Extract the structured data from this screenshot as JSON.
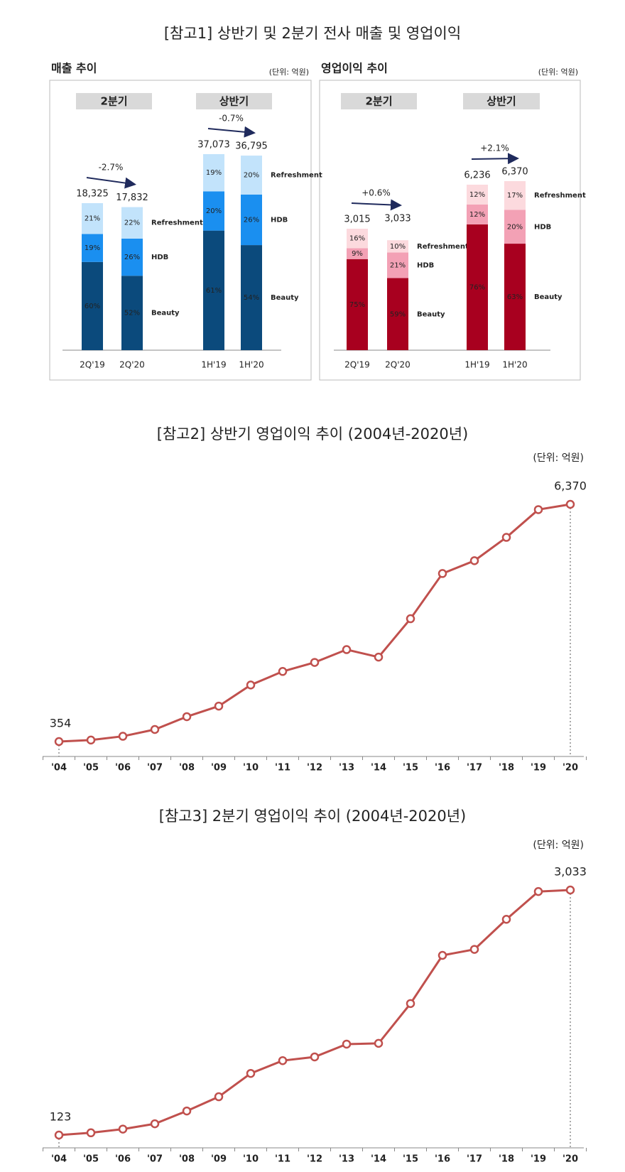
{
  "section_title": "[참고1] 상반기 및 2분기 전사 매출 및 영업이익",
  "chart_data": [
    {
      "type": "bar",
      "title": "매출 추이",
      "unit": "(단위: 억원)",
      "groups": [
        {
          "name": "2분기",
          "change": "-2.7%"
        },
        {
          "name": "상반기",
          "change": "-0.7%"
        }
      ],
      "categories": [
        "2Q'19",
        "2Q'20",
        "1H'19",
        "1H'20"
      ],
      "totals": [
        18325,
        17832,
        37073,
        36795
      ],
      "total_labels": [
        "18,325",
        "17,832",
        "37,073",
        "36,795"
      ],
      "series": [
        {
          "name": "Beauty",
          "color": "#0b4a7c",
          "values": [
            60,
            52,
            61,
            54
          ],
          "value_labels": [
            "60%",
            "52%",
            "61%",
            "54%"
          ]
        },
        {
          "name": "HDB",
          "color": "#1a8ff0",
          "values": [
            19,
            26,
            20,
            26
          ],
          "value_labels": [
            "19%",
            "26%",
            "20%",
            "26%"
          ]
        },
        {
          "name": "Refreshment",
          "color": "#c2e3fb",
          "values": [
            21,
            22,
            19,
            20
          ],
          "value_labels": [
            "21%",
            "22%",
            "19%",
            "20%"
          ]
        }
      ]
    },
    {
      "type": "bar",
      "title": "영업이익 추이",
      "unit": "(단위: 억원)",
      "groups": [
        {
          "name": "2분기",
          "change": "+0.6%"
        },
        {
          "name": "상반기",
          "change": "+2.1%"
        }
      ],
      "categories": [
        "2Q'19",
        "2Q'20",
        "1H'19",
        "1H'20"
      ],
      "totals": [
        3015,
        3033,
        6236,
        6370
      ],
      "total_labels": [
        "3,015",
        "3,033",
        "6,236",
        "6,370"
      ],
      "series": [
        {
          "name": "Beauty",
          "color": "#a8001f",
          "values": [
            75,
            59,
            76,
            63
          ],
          "value_labels": [
            "75%",
            "59%",
            "76%",
            "63%"
          ]
        },
        {
          "name": "HDB",
          "color": "#f3a1b5",
          "values": [
            9,
            21,
            12,
            20
          ],
          "value_labels": [
            "9%",
            "21%",
            "12%",
            "20%"
          ]
        },
        {
          "name": "Refreshment",
          "color": "#fcdade",
          "values": [
            16,
            10,
            12,
            17
          ],
          "value_labels": [
            "16%",
            "10%",
            "12%",
            "17%"
          ]
        }
      ]
    },
    {
      "type": "line",
      "title": "[참고2] 상반기 영업이익 추이 (2004년-2020년)",
      "unit": "(단위: 억원)",
      "color": "#c0504d",
      "categories": [
        "'04",
        "'05",
        "'06",
        "'07",
        "'08",
        "'09",
        "'10",
        "'11",
        "'12",
        "'13",
        "'14",
        "'15",
        "'16",
        "'17",
        "'18",
        "'19",
        "'20"
      ],
      "values": [
        354,
        392,
        488,
        660,
        985,
        1253,
        1788,
        2132,
        2361,
        2686,
        2495,
        3469,
        4615,
        4940,
        5532,
        6236,
        6370
      ],
      "value_labels": [
        "354",
        null,
        null,
        null,
        null,
        null,
        null,
        null,
        null,
        null,
        null,
        null,
        null,
        null,
        null,
        null,
        "6,370"
      ]
    },
    {
      "type": "line",
      "title": "[참고3] 2분기 영업이익 추이 (2004년-2020년)",
      "unit": "(단위: 억원)",
      "color": "#c0504d",
      "categories": [
        "'04",
        "'05",
        "'06",
        "'07",
        "'08",
        "'09",
        "'10",
        "'11",
        "'12",
        "'13",
        "'14",
        "'15",
        "'16",
        "'17",
        "'18",
        "'19",
        "'20"
      ],
      "values": [
        123,
        150,
        194,
        257,
        409,
        578,
        855,
        1007,
        1051,
        1203,
        1212,
        1685,
        2257,
        2328,
        2685,
        3015,
        3033
      ],
      "value_labels": [
        "123",
        null,
        null,
        null,
        null,
        null,
        null,
        null,
        null,
        null,
        null,
        null,
        null,
        null,
        null,
        null,
        "3,033"
      ]
    }
  ]
}
